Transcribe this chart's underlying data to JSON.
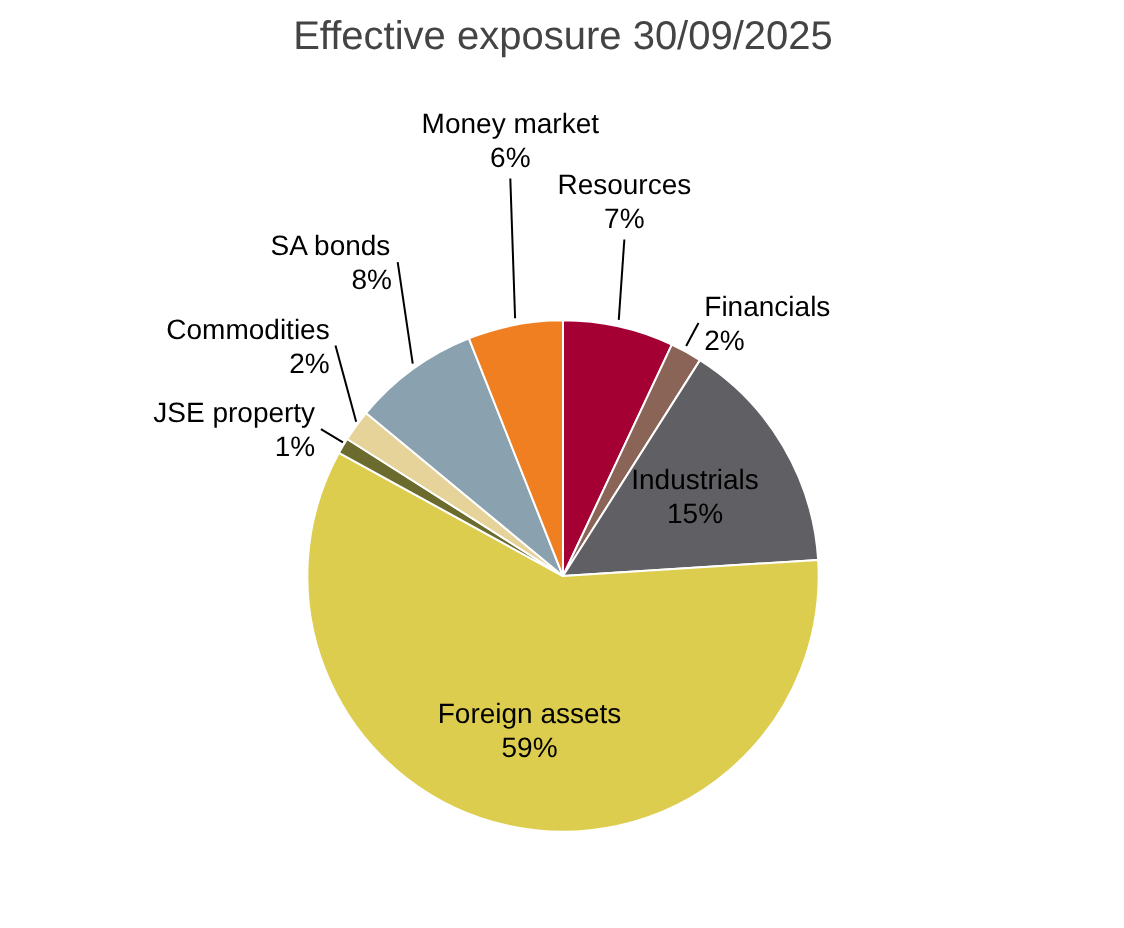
{
  "chart_data": {
    "type": "pie",
    "title": "Effective exposure 30/09/2025",
    "categories": [
      "Resources",
      "Financials",
      "Industrials",
      "Foreign assets",
      "JSE property",
      "Commodities",
      "SA bonds",
      "Money market"
    ],
    "values": [
      7,
      2,
      15,
      59,
      1,
      2,
      8,
      6
    ],
    "value_labels": [
      "7%",
      "2%",
      "15%",
      "59%",
      "1%",
      "2%",
      "8%",
      "6%"
    ],
    "colors": [
      "#a50034",
      "#8b6458",
      "#5f5f64",
      "#ddcd4f",
      "#6b6b2e",
      "#e5d39a",
      "#8aa2b0",
      "#f07f22"
    ]
  }
}
